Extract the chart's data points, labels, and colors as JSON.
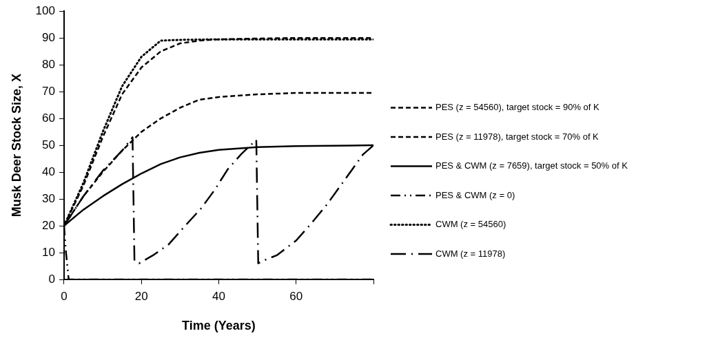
{
  "chart_data": {
    "type": "line",
    "xlabel": "Time (Years)",
    "ylabel": "Musk Deer Stock Size, X",
    "xlim": [
      0,
      80
    ],
    "xticks": [
      0,
      20,
      40,
      60,
      {
        "value": 80,
        "label": null
      }
    ],
    "ylim": [
      0,
      100
    ],
    "yticks": [
      0,
      10,
      20,
      30,
      40,
      50,
      60,
      70,
      80,
      90,
      100
    ],
    "grid": false,
    "legend": "right",
    "marker": "none",
    "series": [
      {
        "name": "PES (z = 54560), target stock = 90% of K",
        "color": "#000000",
        "line_style": "dashed",
        "x": [
          0,
          5,
          10,
          15,
          20,
          25,
          30,
          35,
          40,
          50,
          60,
          80
        ],
        "values": [
          20,
          35,
          53,
          69,
          79,
          85,
          88,
          89,
          89.5,
          89.8,
          90,
          90
        ]
      },
      {
        "name": "PES (z = 11978), target stock = 70% of K",
        "color": "#000000",
        "line_style": "dashed",
        "x": [
          0,
          5,
          10,
          15,
          20,
          25,
          30,
          35,
          40,
          50,
          60,
          80
        ],
        "values": [
          20,
          31,
          40,
          48,
          55,
          60,
          64,
          67,
          68,
          69,
          69.5,
          69.5
        ]
      },
      {
        "name": "PES & CWM (z = 7659), target stock = 50% of K",
        "color": "#000000",
        "line_style": "solid",
        "x": [
          0,
          5,
          10,
          15,
          20,
          25,
          30,
          35,
          40,
          50,
          60,
          80
        ],
        "values": [
          20,
          26,
          31,
          35.5,
          39.5,
          43,
          45.5,
          47.2,
          48.3,
          49.3,
          49.7,
          50
        ]
      },
      {
        "name": "PES & CWM (z = 0)",
        "color": "#000000",
        "line_style": "dashdotdot",
        "x": [
          0,
          0.5,
          1.2,
          80
        ],
        "values": [
          20,
          10,
          0,
          0
        ]
      },
      {
        "name": "CWM (z = 54560)",
        "color": "#000000",
        "line_style": "dotted",
        "x": [
          0,
          5,
          10,
          15,
          20,
          25,
          30,
          40,
          80
        ],
        "values": [
          20,
          36,
          55,
          72,
          83,
          89,
          89.3,
          89.5,
          89.5
        ]
      },
      {
        "name": "CWM (z = 11978)",
        "color": "#000000",
        "line_style": "dashdot",
        "x": [
          0,
          5,
          10,
          15,
          17.7,
          18.2,
          19.4,
          23,
          27,
          31,
          35.5,
          39,
          42.3,
          46,
          49.7,
          50.2,
          51.5,
          55,
          60,
          64,
          68,
          71.5,
          74.5,
          77.3,
          80
        ],
        "values": [
          20,
          31,
          40.5,
          48,
          53,
          7,
          6,
          9,
          13,
          19.5,
          26.6,
          33.5,
          41,
          47,
          52,
          6,
          7,
          9,
          14.5,
          21,
          28,
          35,
          41,
          46.6,
          50
        ]
      }
    ]
  }
}
